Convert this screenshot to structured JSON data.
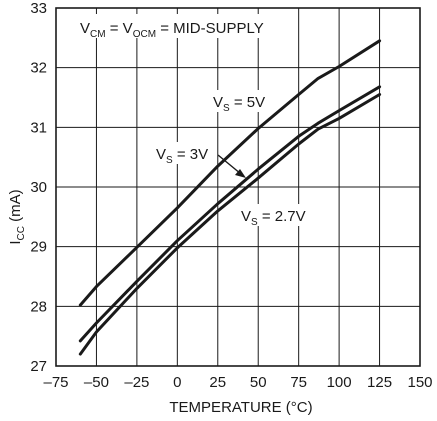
{
  "chart_data": {
    "type": "line",
    "title": "",
    "xlabel": "TEMPERATURE (°C)",
    "ylabel_main": "I",
    "ylabel_sub": "CC",
    "ylabel_unit": " (mA)",
    "xlim": [
      -75,
      150
    ],
    "ylim": [
      27,
      33
    ],
    "xticks": [
      -75,
      -50,
      -25,
      0,
      25,
      50,
      75,
      100,
      125,
      150
    ],
    "xtick_labels": [
      "–75",
      "–50",
      "–25",
      "0",
      "25",
      "50",
      "75",
      "100",
      "125",
      "150"
    ],
    "yticks": [
      27,
      28,
      29,
      30,
      31,
      32,
      33
    ],
    "ytick_labels": [
      "27",
      "28",
      "29",
      "30",
      "31",
      "32",
      "33"
    ],
    "grid": true,
    "line_color": "#1a1a1a",
    "header_annotation": {
      "v1": "V",
      "v1_sub": "CM",
      "eq1": " = V",
      "v2_sub": "OCM",
      "rest": " = MID-SUPPLY"
    },
    "series": [
      {
        "name": "V_S = 5V",
        "label_main": "V",
        "label_sub": "S",
        "label_rest": " = 5V",
        "x": [
          -60,
          -50,
          -25,
          0,
          25,
          50,
          75,
          87,
          100,
          125
        ],
        "y": [
          28.02,
          28.33,
          28.99,
          29.65,
          30.35,
          30.98,
          31.55,
          31.82,
          32.02,
          32.45
        ]
      },
      {
        "name": "V_S = 3V",
        "label_main": "V",
        "label_sub": "S",
        "label_rest": " = 3V",
        "x": [
          -60,
          -50,
          -25,
          0,
          25,
          50,
          75,
          87,
          100,
          125
        ],
        "y": [
          27.42,
          27.72,
          28.42,
          29.1,
          29.72,
          30.3,
          30.85,
          31.07,
          31.28,
          31.68
        ]
      },
      {
        "name": "V_S = 2.7V",
        "label_main": "V",
        "label_sub": "S",
        "label_rest": " = 2.7V",
        "x": [
          -60,
          -50,
          -25,
          0,
          25,
          50,
          75,
          87,
          100,
          125
        ],
        "y": [
          27.2,
          27.57,
          28.3,
          28.98,
          29.6,
          30.15,
          30.72,
          30.97,
          31.15,
          31.55
        ]
      }
    ]
  }
}
